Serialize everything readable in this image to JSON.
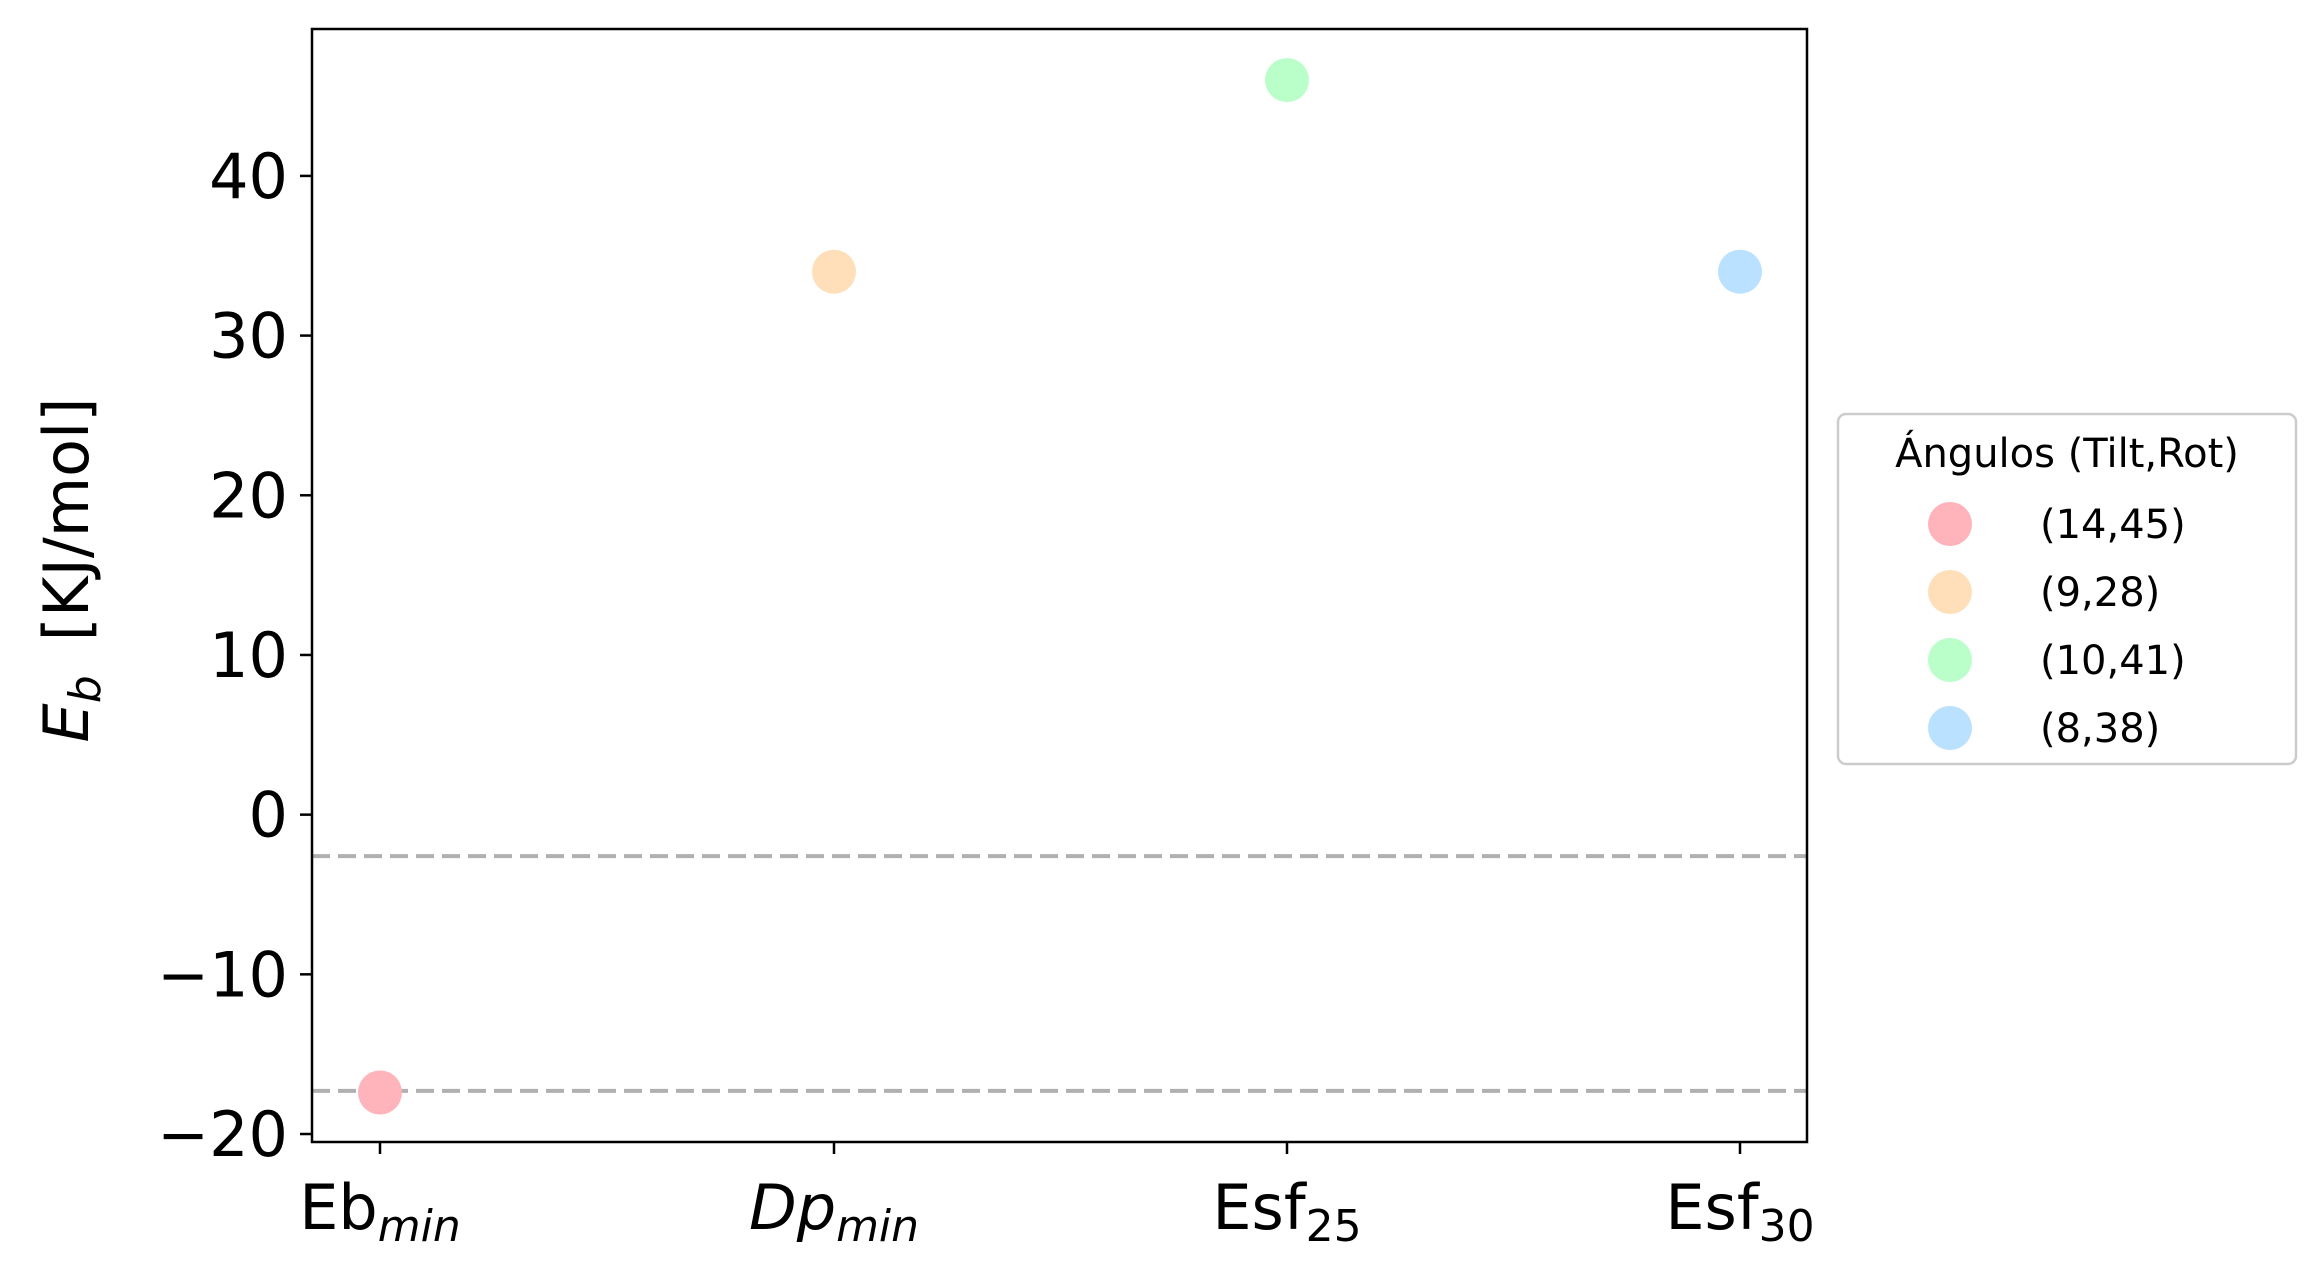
{
  "chart_data": {
    "type": "scatter",
    "categories": [
      "Eb",
      "Dp",
      "Esf",
      "Esf"
    ],
    "category_subscripts": [
      "min",
      "min",
      "25",
      "30"
    ],
    "category_italic": [
      false,
      true,
      false,
      false
    ],
    "points": [
      {
        "category": 0,
        "y": -17.4,
        "label": "(14,45)",
        "color": "#ffb3ba"
      },
      {
        "category": 1,
        "y": 34.0,
        "label": "(9,28)",
        "color": "#ffdfba"
      },
      {
        "category": 2,
        "y": 46.0,
        "label": "(10,41)",
        "color": "#baffc9"
      },
      {
        "category": 3,
        "y": 34.0,
        "label": "(8,38)",
        "color": "#bae1ff"
      }
    ],
    "reference_lines": [
      {
        "y": -2.6,
        "style": "dashed",
        "color": "#b0b0b0"
      },
      {
        "y": -17.3,
        "style": "dashed",
        "color": "#b0b0b0"
      }
    ],
    "yticks": [
      -20,
      -10,
      0,
      10,
      20,
      30,
      40
    ],
    "ytick_labels": [
      "−20",
      "−10",
      "0",
      "10",
      "20",
      "30",
      "40"
    ],
    "ylim": [
      -20.5,
      49.2
    ],
    "ylabel_symbol": "E",
    "ylabel_subscript": "b",
    "ylabel_unit": "[KJ/mol]",
    "legend": {
      "title": "Ángulos (Tilt,Rot)",
      "placement": "right-outside",
      "entries": [
        "(14,45)",
        "(9,28)",
        "(10,41)",
        "(8,38)"
      ]
    },
    "grid": false
  }
}
